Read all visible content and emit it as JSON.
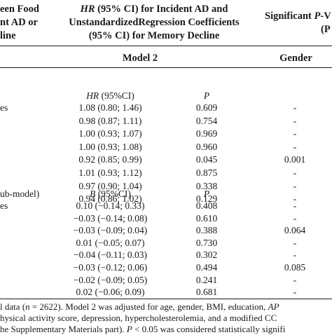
{
  "header": {
    "left_line1": "een Food",
    "left_line2": "nt AD or",
    "left_line3": "line",
    "mid_line1_prefix": "HR",
    "mid_line1_suffix": " (95% CI) for Incident AD and",
    "mid_line2": "UnstandardizedRegression Coefficients",
    "mid_line3": "(95% CI) for Memory Decline",
    "right_line1_prefix": "Significant ",
    "right_line1_italic": "P",
    "right_line1_suffix": "-V",
    "right_line2": "(P",
    "model_label": "Model 2",
    "gender_label": "Gender"
  },
  "section1": {
    "row_label": "es",
    "ci_header_prefix": "HR",
    "ci_header_suffix": " (95%CI)",
    "p_header": "P",
    "rows": [
      {
        "ci": "1.08 (0.80; 1.46)",
        "p": "0.609",
        "g": "-"
      },
      {
        "ci": "0.98 (0.87; 1.11)",
        "p": "0.754",
        "g": "-"
      },
      {
        "ci": "1.00 (0.93; 1.07)",
        "p": "0.969",
        "g": "-"
      },
      {
        "ci": "1.00 (0.93; 1.08)",
        "p": "0.960",
        "g": "-"
      },
      {
        "ci": "0.92 (0.85; 0.99)",
        "p": "0.045",
        "g": "0.001"
      },
      {
        "ci": "1.01 (0.93; 1.12)",
        "p": "0.875",
        "g": "-"
      },
      {
        "ci": "0.97 (0.90; 1.04)",
        "p": "0.338",
        "g": "-"
      },
      {
        "ci": "0.94 (0.86; 1.02)",
        "p": "0.129",
        "g": "-"
      }
    ]
  },
  "section2": {
    "row_label_1": "ub-model)",
    "row_label_2": "es",
    "ci_header_prefix": "B",
    "ci_header_suffix": " (95%CI)",
    "p_header": "P",
    "rows": [
      {
        "ci": "0.10 (−0.14; 0.33)",
        "p": "0.408",
        "g": "-"
      },
      {
        "ci": "−0.03 (−0.14; 0.08)",
        "p": "0.610",
        "g": "-"
      },
      {
        "ci": "−0.03 (−0.09; 0.04)",
        "p": "0.388",
        "g": "0.064"
      },
      {
        "ci": "0.01 (−0.05; 0.07)",
        "p": "0.730",
        "g": "-"
      },
      {
        "ci": "−0.04 (−0.11; 0.03)",
        "p": "0.302",
        "g": "-"
      },
      {
        "ci": "−0.03 (−0.12; 0.06)",
        "p": "0.494",
        "g": "0.085"
      },
      {
        "ci": "−0.02 (−0.09; 0.05)",
        "p": "0.241",
        "g": "-"
      },
      {
        "ci": "0.02 (−0.06; 0.09)",
        "p": "0.681",
        "g": "-"
      }
    ]
  },
  "footnote": {
    "line1_a": "l data (",
    "line1_n": "n",
    "line1_b": " = 2622). Model 2 was adjusted for age, gender, BMI, education, ",
    "line1_c": "AP",
    "line2": "hysical activity score, depression, hypercholesterolemia, and a modified CC",
    "line3_a": "he Supplementary Materials part). ",
    "line3_p": "P",
    "line3_b": " < 0.05 was considered statistically signifi"
  }
}
